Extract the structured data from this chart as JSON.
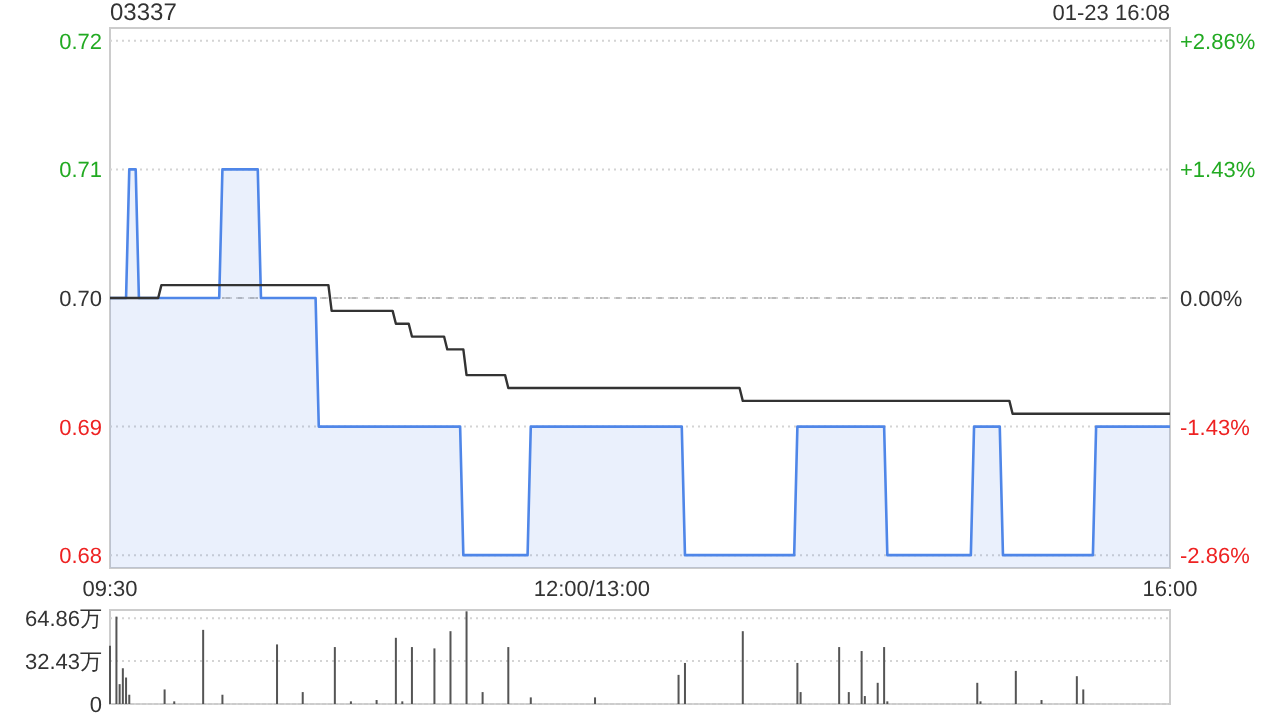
{
  "chart_data": [
    {
      "type": "line",
      "title": "03337",
      "subtitle": "01-23 16:08",
      "categories": [
        "09:30",
        null,
        null,
        null,
        null,
        null,
        null,
        null,
        null,
        null,
        null,
        null,
        null,
        null,
        null,
        null,
        null,
        null,
        null,
        null,
        null,
        null,
        null,
        null,
        null,
        null,
        null,
        null,
        null,
        null,
        null,
        null,
        null,
        null,
        null,
        null,
        null,
        null,
        null,
        null,
        null,
        null,
        null,
        null,
        null,
        null,
        null,
        null,
        null,
        null,
        null,
        null,
        null,
        null,
        null,
        null,
        null,
        null,
        null,
        null,
        null,
        null,
        null,
        null,
        null,
        null,
        null,
        null,
        null,
        null,
        null,
        null,
        null,
        null,
        null,
        null,
        null,
        null,
        null,
        null,
        null,
        null,
        null,
        null,
        null,
        null,
        null,
        null,
        null,
        null,
        null,
        null,
        null,
        null,
        null,
        null,
        null,
        null,
        null,
        null,
        null,
        null,
        null,
        null,
        null,
        null,
        null,
        null,
        null,
        null,
        null,
        null,
        null,
        null,
        null,
        null,
        null,
        null,
        null,
        null,
        null,
        null,
        null,
        null,
        null,
        null,
        null,
        null,
        null,
        null,
        null,
        null,
        null,
        null,
        null,
        null,
        null,
        null,
        null,
        null,
        null,
        null,
        null,
        null,
        null,
        null,
        null,
        null,
        null,
        null,
        "12:00/13:00",
        null,
        null,
        null,
        null,
        null,
        null,
        null,
        null,
        null,
        null,
        null,
        null,
        null,
        null,
        null,
        null,
        null,
        null,
        null,
        null,
        null,
        null,
        null,
        null,
        null,
        null,
        null,
        null,
        null,
        null,
        null,
        null,
        null,
        null,
        null,
        null,
        null,
        null,
        null,
        null,
        null,
        null,
        null,
        null,
        null,
        null,
        null,
        null,
        null,
        null,
        null,
        null,
        null,
        null,
        null,
        null,
        null,
        null,
        null,
        null,
        null,
        null,
        null,
        null,
        null,
        null,
        null,
        null,
        null,
        null,
        null,
        null,
        null,
        null,
        null,
        null,
        null,
        null,
        null,
        null,
        null,
        null,
        null,
        null,
        null,
        null,
        null,
        null,
        null,
        null,
        null,
        null,
        null,
        null,
        null,
        null,
        null,
        null,
        null,
        null,
        null,
        null,
        null,
        null,
        null,
        null,
        null,
        null,
        null,
        null,
        null,
        null,
        null,
        null,
        null,
        null,
        null,
        null,
        null,
        null,
        null,
        null,
        null,
        null,
        null,
        null,
        null,
        null,
        null,
        null,
        null,
        null,
        null,
        null,
        null,
        null,
        null,
        null,
        null,
        null,
        null,
        null,
        null,
        null,
        null,
        null,
        null,
        null,
        null,
        null,
        null,
        null,
        null,
        null,
        null,
        null,
        null,
        null,
        null,
        null,
        null,
        null,
        null,
        null,
        null,
        null,
        null,
        null,
        null,
        null,
        null,
        null,
        null,
        null,
        null,
        null,
        null,
        null,
        null,
        "16:00"
      ],
      "ylim": [
        0.679,
        0.721
      ],
      "yticks": [
        {
          "value": 0.68,
          "label": "0.68"
        },
        {
          "value": 0.69,
          "label": "0.69"
        },
        {
          "value": 0.7,
          "label": "0.70"
        },
        {
          "value": 0.71,
          "label": "0.71"
        },
        {
          "value": 0.72,
          "label": "0.72"
        }
      ],
      "y2lim": [
        -3.0,
        3.0
      ],
      "y2ticks": [
        {
          "value": -2.86,
          "label": "-2.86%"
        },
        {
          "value": -1.43,
          "label": "-1.43%"
        },
        {
          "value": 0,
          "label": "0.00%"
        },
        {
          "value": 1.43,
          "label": "+1.43%"
        },
        {
          "value": 2.86,
          "label": "+2.86%"
        }
      ],
      "grid": "y",
      "ref_lines": [
        {
          "axis": "y",
          "value": 0.7,
          "color": "#bbbbbb",
          "line_style": "dashed"
        }
      ],
      "series": [
        {
          "type": "area",
          "color": "#4f86e8",
          "values": [
            0.7,
            0.7,
            0.7,
            0.7,
            0.7,
            0.7,
            0.71,
            0.71,
            0.71,
            0.7,
            0.7,
            0.7,
            0.7,
            0.7,
            0.7,
            0.7,
            0.7,
            0.7,
            0.7,
            0.7,
            0.7,
            0.7,
            0.7,
            0.7,
            0.7,
            0.7,
            0.7,
            0.7,
            0.7,
            0.7,
            0.7,
            0.7,
            0.7,
            0.7,
            0.7,
            0.71,
            0.71,
            0.71,
            0.71,
            0.71,
            0.71,
            0.71,
            0.71,
            0.71,
            0.71,
            0.71,
            0.71,
            0.7,
            0.7,
            0.7,
            0.7,
            0.7,
            0.7,
            0.7,
            0.7,
            0.7,
            0.7,
            0.7,
            0.7,
            0.7,
            0.7,
            0.7,
            0.7,
            0.7,
            0.7,
            0.69,
            0.69,
            0.69,
            0.69,
            0.69,
            0.69,
            0.69,
            0.69,
            0.69,
            0.69,
            0.69,
            0.69,
            0.69,
            0.69,
            0.69,
            0.69,
            0.69,
            0.69,
            0.69,
            0.69,
            0.69,
            0.69,
            0.69,
            0.69,
            0.69,
            0.69,
            0.69,
            0.69,
            0.69,
            0.69,
            0.69,
            0.69,
            0.69,
            0.69,
            0.69,
            0.69,
            0.69,
            0.69,
            0.69,
            0.69,
            0.69,
            0.69,
            0.69,
            0.69,
            0.69,
            0.68,
            0.68,
            0.68,
            0.68,
            0.68,
            0.68,
            0.68,
            0.68,
            0.68,
            0.68,
            0.68,
            0.68,
            0.68,
            0.68,
            0.68,
            0.68,
            0.68,
            0.68,
            0.68,
            0.68,
            0.68,
            0.69,
            0.69,
            0.69,
            0.69,
            0.69,
            0.69,
            0.69,
            0.69,
            0.69,
            0.69,
            0.69,
            0.69,
            0.69,
            0.69,
            0.69,
            0.69,
            0.69,
            0.69,
            0.69,
            0.69,
            0.69,
            0.69,
            0.69,
            0.69,
            0.69,
            0.69,
            0.69,
            0.69,
            0.69,
            0.69,
            0.69,
            0.69,
            0.69,
            0.69,
            0.69,
            0.69,
            0.69,
            0.69,
            0.69,
            0.69,
            0.69,
            0.69,
            0.69,
            0.69,
            0.69,
            0.69,
            0.69,
            0.69,
            0.68,
            0.68,
            0.68,
            0.68,
            0.68,
            0.68,
            0.68,
            0.68,
            0.68,
            0.68,
            0.68,
            0.68,
            0.68,
            0.68,
            0.68,
            0.68,
            0.68,
            0.68,
            0.68,
            0.68,
            0.68,
            0.68,
            0.68,
            0.68,
            0.68,
            0.68,
            0.68,
            0.68,
            0.68,
            0.68,
            0.68,
            0.68,
            0.68,
            0.68,
            0.68,
            0.69,
            0.69,
            0.69,
            0.69,
            0.69,
            0.69,
            0.69,
            0.69,
            0.69,
            0.69,
            0.69,
            0.69,
            0.69,
            0.69,
            0.69,
            0.69,
            0.69,
            0.69,
            0.69,
            0.69,
            0.69,
            0.69,
            0.69,
            0.69,
            0.69,
            0.69,
            0.69,
            0.69,
            0.68,
            0.68,
            0.68,
            0.68,
            0.68,
            0.68,
            0.68,
            0.68,
            0.68,
            0.68,
            0.68,
            0.68,
            0.68,
            0.68,
            0.68,
            0.68,
            0.68,
            0.68,
            0.68,
            0.68,
            0.68,
            0.68,
            0.68,
            0.68,
            0.68,
            0.68,
            0.68,
            0.69,
            0.69,
            0.69,
            0.69,
            0.69,
            0.69,
            0.69,
            0.69,
            0.69,
            0.68,
            0.68,
            0.68,
            0.68,
            0.68,
            0.68,
            0.68,
            0.68,
            0.68,
            0.68,
            0.68,
            0.68,
            0.68,
            0.68,
            0.68,
            0.68,
            0.68,
            0.68,
            0.68,
            0.68,
            0.68,
            0.68,
            0.68,
            0.68,
            0.68,
            0.68,
            0.68,
            0.68,
            0.68,
            0.69,
            0.69,
            0.69,
            0.69,
            0.69,
            0.69,
            0.69,
            0.69,
            0.69,
            0.69,
            0.69,
            0.69,
            0.69,
            0.69,
            0.69,
            0.69,
            0.69,
            0.69,
            0.69,
            0.69,
            0.69,
            0.69,
            0.69,
            0.69
          ]
        },
        {
          "color": "#333333",
          "values": [
            0.7,
            0.7,
            0.7,
            0.7,
            0.7,
            0.7,
            0.7,
            0.7,
            0.7,
            0.7,
            0.7,
            0.7,
            0.7,
            0.7,
            0.7,
            0.7,
            0.701,
            0.701,
            0.701,
            0.701,
            0.701,
            0.701,
            0.701,
            0.701,
            0.701,
            0.701,
            0.701,
            0.701,
            0.701,
            0.701,
            0.701,
            0.701,
            0.701,
            0.701,
            0.701,
            0.701,
            0.701,
            0.701,
            0.701,
            0.701,
            0.701,
            0.701,
            0.701,
            0.701,
            0.701,
            0.701,
            0.701,
            0.701,
            0.701,
            0.701,
            0.701,
            0.701,
            0.701,
            0.701,
            0.701,
            0.701,
            0.701,
            0.701,
            0.701,
            0.701,
            0.701,
            0.701,
            0.701,
            0.701,
            0.701,
            0.701,
            0.701,
            0.701,
            0.701,
            0.699,
            0.699,
            0.699,
            0.699,
            0.699,
            0.699,
            0.699,
            0.699,
            0.699,
            0.699,
            0.699,
            0.699,
            0.699,
            0.699,
            0.699,
            0.699,
            0.699,
            0.699,
            0.699,
            0.699,
            0.698,
            0.698,
            0.698,
            0.698,
            0.698,
            0.697,
            0.697,
            0.697,
            0.697,
            0.697,
            0.697,
            0.697,
            0.697,
            0.697,
            0.697,
            0.697,
            0.696,
            0.696,
            0.696,
            0.696,
            0.696,
            0.696,
            0.694,
            0.694,
            0.694,
            0.694,
            0.694,
            0.694,
            0.694,
            0.694,
            0.694,
            0.694,
            0.694,
            0.694,
            0.694,
            0.693,
            0.693,
            0.693,
            0.693,
            0.693,
            0.693,
            0.693,
            0.693,
            0.693,
            0.693,
            0.693,
            0.693,
            0.693,
            0.693,
            0.693,
            0.693,
            0.693,
            0.693,
            0.693,
            0.693,
            0.693,
            0.693,
            0.693,
            0.693,
            0.693,
            0.693,
            0.693,
            0.693,
            0.693,
            0.693,
            0.693,
            0.693,
            0.693,
            0.693,
            0.693,
            0.693,
            0.693,
            0.693,
            0.693,
            0.693,
            0.693,
            0.693,
            0.693,
            0.693,
            0.693,
            0.693,
            0.693,
            0.693,
            0.693,
            0.693,
            0.693,
            0.693,
            0.693,
            0.693,
            0.693,
            0.693,
            0.693,
            0.693,
            0.693,
            0.693,
            0.693,
            0.693,
            0.693,
            0.693,
            0.693,
            0.693,
            0.693,
            0.693,
            0.693,
            0.693,
            0.693,
            0.693,
            0.693,
            0.692,
            0.692,
            0.692,
            0.692,
            0.692,
            0.692,
            0.692,
            0.692,
            0.692,
            0.692,
            0.692,
            0.692,
            0.692,
            0.692,
            0.692,
            0.692,
            0.692,
            0.692,
            0.692,
            0.692,
            0.692,
            0.692,
            0.692,
            0.692,
            0.692,
            0.692,
            0.692,
            0.692,
            0.692,
            0.692,
            0.692,
            0.692,
            0.692,
            0.692,
            0.692,
            0.692,
            0.692,
            0.692,
            0.692,
            0.692,
            0.692,
            0.692,
            0.692,
            0.692,
            0.692,
            0.692,
            0.692,
            0.692,
            0.692,
            0.692,
            0.692,
            0.692,
            0.692,
            0.692,
            0.692,
            0.692,
            0.692,
            0.692,
            0.692,
            0.692,
            0.692,
            0.692,
            0.692,
            0.692,
            0.692,
            0.692,
            0.692,
            0.692,
            0.692,
            0.692,
            0.692,
            0.692,
            0.692,
            0.692,
            0.692,
            0.692,
            0.692,
            0.692,
            0.692,
            0.692,
            0.692,
            0.692,
            0.692,
            0.692,
            0.691,
            0.691,
            0.691,
            0.691,
            0.691,
            0.691,
            0.691,
            0.691,
            0.691,
            0.691,
            0.691,
            0.691,
            0.691,
            0.691,
            0.691,
            0.691,
            0.691,
            0.691,
            0.691,
            0.691,
            0.691,
            0.691,
            0.691,
            0.691,
            0.691,
            0.691,
            0.691,
            0.691,
            0.691,
            0.691,
            0.691,
            0.691,
            0.691,
            0.691,
            0.691,
            0.691,
            0.691,
            0.691,
            0.691,
            0.691,
            0.691,
            0.691,
            0.691,
            0.691,
            0.691,
            0.691,
            0.691,
            0.691,
            0.691,
            0.691
          ]
        }
      ]
    },
    {
      "type": "bar",
      "color": "#555555",
      "tick_labels": "y",
      "grid": "y",
      "categories": [
        null,
        null,
        null,
        null,
        null,
        null,
        null,
        null,
        null,
        null,
        null,
        null,
        null,
        null,
        null,
        null,
        null,
        null,
        null,
        null,
        null,
        null,
        null,
        null,
        null,
        null,
        null,
        null,
        null,
        null,
        null,
        null,
        null,
        null,
        null,
        null,
        null,
        null,
        null,
        null,
        null,
        null,
        null,
        null,
        null,
        null,
        null,
        null,
        null,
        null,
        null,
        null,
        null,
        null,
        null,
        null,
        null,
        null,
        null,
        null,
        null,
        null,
        null,
        null,
        null,
        null,
        null,
        null,
        null,
        null,
        null,
        null,
        null,
        null,
        null,
        null,
        null,
        null,
        null,
        null,
        null,
        null,
        null,
        null,
        null,
        null,
        null,
        null,
        null,
        null,
        null,
        null,
        null,
        null,
        null,
        null,
        null,
        null,
        null,
        null,
        null,
        null,
        null,
        null,
        null,
        null,
        null,
        null,
        null,
        null,
        null,
        null,
        null,
        null,
        null,
        null,
        null,
        null,
        null,
        null,
        null,
        null,
        null,
        null,
        null,
        null,
        null,
        null,
        null,
        null,
        null,
        null,
        null,
        null,
        null,
        null,
        null,
        null,
        null,
        null,
        null,
        null,
        null,
        null,
        null,
        null,
        null,
        null,
        null,
        null,
        null,
        null,
        null,
        null,
        null,
        null,
        null,
        null,
        null,
        null,
        null,
        null,
        null,
        null,
        null,
        null,
        null,
        null,
        null,
        null,
        null,
        null,
        null,
        null,
        null,
        null,
        null,
        null,
        null,
        null,
        null,
        null,
        null,
        null,
        null,
        null,
        null,
        null,
        null,
        null,
        null,
        null,
        null,
        null,
        null,
        null,
        null,
        null,
        null,
        null,
        null,
        null,
        null,
        null,
        null,
        null,
        null,
        null,
        null,
        null,
        null,
        null,
        null,
        null,
        null,
        null,
        null,
        null,
        null,
        null,
        null,
        null,
        null,
        null,
        null,
        null,
        null,
        null,
        null,
        null,
        null,
        null,
        null,
        null,
        null,
        null,
        null,
        null,
        null,
        null,
        null,
        null,
        null,
        null,
        null,
        null,
        null,
        null,
        null,
        null,
        null,
        null,
        null,
        null,
        null,
        null,
        null,
        null,
        null,
        null,
        null,
        null,
        null,
        null,
        null,
        null,
        null,
        null,
        null,
        null,
        null,
        null,
        null,
        null,
        null,
        null,
        null,
        null,
        null,
        null,
        null,
        null,
        null,
        null,
        null,
        null,
        null,
        null,
        null,
        null,
        null,
        null,
        null,
        null,
        null,
        null,
        null,
        null,
        null,
        null,
        null,
        null,
        null,
        null,
        null,
        null,
        null,
        null,
        null,
        null,
        null,
        null,
        null,
        null,
        null,
        null,
        null,
        null,
        null,
        null,
        null,
        null,
        null,
        null,
        null,
        null,
        null,
        null,
        null,
        null,
        null
      ],
      "values": [
        44,
        null,
        66,
        15,
        27,
        20,
        7,
        null,
        null,
        null,
        null,
        null,
        null,
        null,
        null,
        null,
        null,
        11,
        null,
        null,
        2,
        null,
        null,
        null,
        null,
        null,
        null,
        null,
        null,
        56,
        null,
        null,
        null,
        null,
        null,
        7,
        null,
        null,
        null,
        null,
        null,
        null,
        null,
        null,
        null,
        null,
        null,
        null,
        null,
        null,
        null,
        null,
        45,
        null,
        null,
        null,
        null,
        null,
        null,
        null,
        9,
        null,
        null,
        null,
        null,
        null,
        null,
        null,
        null,
        null,
        43,
        null,
        null,
        null,
        null,
        2,
        null,
        null,
        null,
        null,
        null,
        null,
        null,
        3,
        null,
        null,
        null,
        null,
        null,
        50,
        null,
        2,
        null,
        null,
        43,
        null,
        null,
        null,
        null,
        null,
        null,
        42,
        null,
        null,
        null,
        null,
        55,
        null,
        null,
        null,
        null,
        70,
        null,
        null,
        null,
        null,
        9,
        null,
        null,
        null,
        null,
        null,
        null,
        null,
        43,
        null,
        null,
        null,
        null,
        null,
        null,
        5,
        null,
        null,
        null,
        null,
        null,
        null,
        null,
        null,
        null,
        null,
        null,
        null,
        null,
        null,
        null,
        null,
        null,
        null,
        null,
        5,
        null,
        null,
        null,
        null,
        null,
        null,
        null,
        null,
        null,
        null,
        null,
        null,
        null,
        null,
        null,
        null,
        null,
        null,
        null,
        null,
        null,
        null,
        null,
        null,
        null,
        22,
        null,
        31,
        null,
        null,
        null,
        null,
        null,
        null,
        null,
        null,
        null,
        null,
        null,
        null,
        null,
        null,
        null,
        null,
        null,
        55,
        null,
        null,
        null,
        null,
        null,
        null,
        null,
        null,
        null,
        null,
        null,
        null,
        null,
        null,
        null,
        null,
        31,
        9,
        null,
        null,
        null,
        null,
        null,
        null,
        null,
        null,
        null,
        null,
        null,
        43,
        null,
        null,
        9,
        null,
        null,
        null,
        40,
        6,
        null,
        null,
        null,
        16,
        null,
        43,
        2,
        null,
        null,
        null,
        null,
        null,
        null,
        null,
        null,
        null,
        null,
        null,
        null,
        null,
        null,
        null,
        null,
        null,
        null,
        null,
        null,
        null,
        null,
        null,
        null,
        null,
        null,
        null,
        16,
        2,
        null,
        null,
        null,
        null,
        null,
        null,
        null,
        null,
        null,
        null,
        25,
        null,
        null,
        null,
        null,
        null,
        null,
        null,
        3,
        null,
        null,
        null,
        null,
        null,
        null,
        null,
        null,
        null,
        null,
        21,
        null,
        11,
        null,
        null,
        null,
        null,
        null,
        null,
        null,
        null,
        null,
        null,
        null,
        null,
        null,
        null,
        null,
        null,
        null,
        null,
        null,
        null,
        null,
        null,
        null,
        null,
        null,
        null,
        null
      ],
      "ylim": [
        0,
        71
      ],
      "yticks": [
        0,
        {
          "value": 32.43,
          "label": "32.43万"
        },
        {
          "value": 64.86,
          "label": "64.86万"
        }
      ]
    }
  ]
}
